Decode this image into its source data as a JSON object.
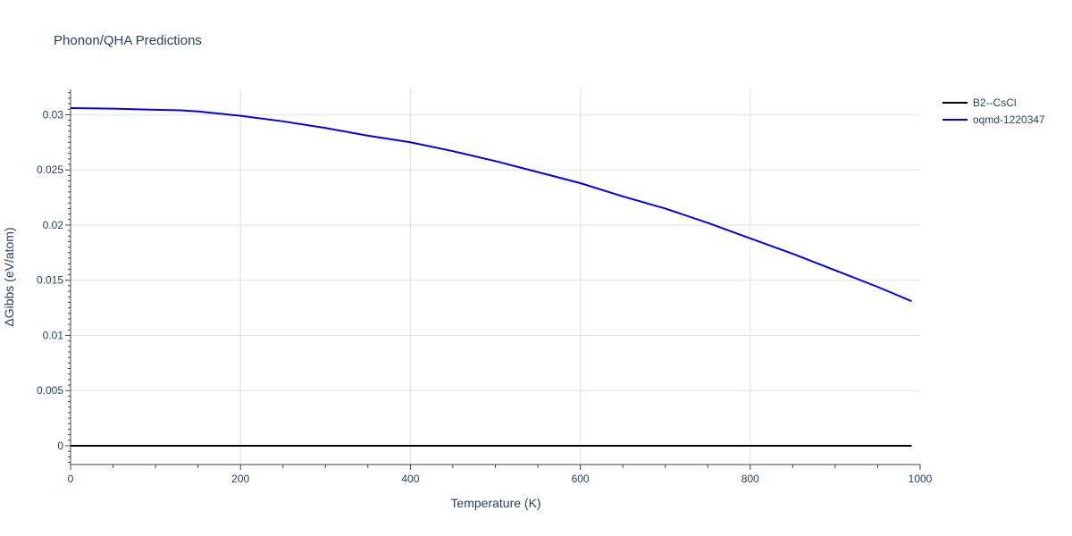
{
  "chart_data": {
    "type": "line",
    "title": "Phonon/QHA Predictions",
    "xlabel": "Temperature (K)",
    "ylabel": "ΔGibbs (eV/atom)",
    "xlim": [
      0,
      1000
    ],
    "ylim": [
      -0.0017,
      0.0323
    ],
    "x_ticks": [
      0,
      200,
      400,
      600,
      800,
      1000
    ],
    "y_ticks": [
      0,
      0.005,
      0.01,
      0.015,
      0.02,
      0.025,
      0.03
    ],
    "x_tick_labels": [
      "0",
      "200",
      "400",
      "600",
      "800",
      "1000"
    ],
    "y_tick_labels": [
      "0",
      "0.005",
      "0.01",
      "0.015",
      "0.02",
      "0.025",
      "0.03"
    ],
    "grid": true,
    "legend_position": "top-right",
    "series": [
      {
        "name": "B2--CsCl",
        "color": "#000000",
        "x": [
          0,
          990
        ],
        "y": [
          0,
          0
        ]
      },
      {
        "name": "oqmd-1220347",
        "color": "#0000ee",
        "x": [
          0,
          50,
          100,
          130,
          150,
          200,
          250,
          300,
          350,
          400,
          450,
          500,
          550,
          600,
          650,
          700,
          750,
          800,
          850,
          900,
          950,
          990
        ],
        "y": [
          0.0306,
          0.03055,
          0.03045,
          0.0304,
          0.0303,
          0.0299,
          0.0294,
          0.0288,
          0.0281,
          0.0275,
          0.0267,
          0.0258,
          0.0248,
          0.0238,
          0.0226,
          0.0215,
          0.0202,
          0.0188,
          0.0174,
          0.0159,
          0.0144,
          0.0131
        ]
      }
    ]
  }
}
